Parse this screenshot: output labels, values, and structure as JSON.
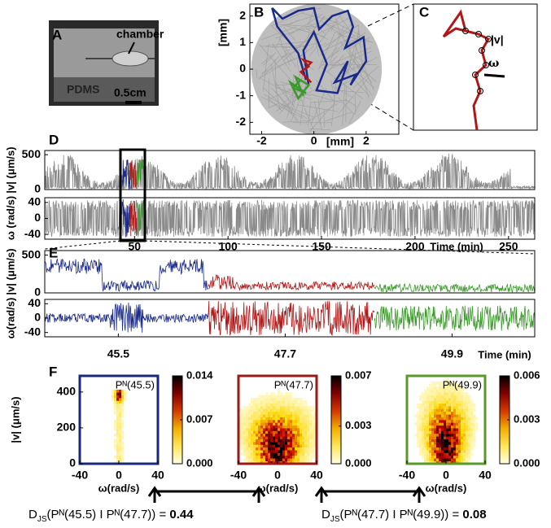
{
  "panel_a": {
    "letter": "A",
    "chamber": "chamber",
    "material": "PDMS",
    "scale": "0.5cm"
  },
  "panel_b": {
    "letter": "B",
    "xlabel": "[mm]",
    "ylabel": "[mm]",
    "xlim": [
      -2.45,
      3.25
    ],
    "xticks": [
      -2,
      0,
      2
    ],
    "ylim": [
      -2.45,
      2.45
    ],
    "yticks": [
      -2,
      -1,
      0,
      1,
      2
    ]
  },
  "panel_c": {
    "letter": "C",
    "speed_label": "|v|",
    "turn_label": "ω"
  },
  "panel_d": {
    "letter": "D",
    "xlim": [
      2,
      264
    ],
    "xticks": [
      50,
      100,
      150,
      200,
      250
    ],
    "xlabel": "Time (min)",
    "speed": {
      "ylabel": "|v| (μm/s)",
      "ylim": [
        0,
        560
      ],
      "yticks": [
        0,
        500
      ]
    },
    "turn": {
      "ylabel": "ω (rad/s)",
      "ylim": [
        -52,
        52
      ],
      "yticks": [
        -40,
        0,
        40
      ]
    }
  },
  "panel_e": {
    "letter": "E",
    "xlim": [
      44.53,
      50.99
    ],
    "xticks": [
      45.5,
      47.7,
      49.9
    ],
    "xlabel": "Time (min)",
    "speed": {
      "ylabel": "|v| (μm/s)",
      "ylim": [
        0,
        560
      ],
      "yticks": [
        0,
        500
      ]
    },
    "turn": {
      "ylabel": "ω(rad/s)",
      "ylim": [
        -52,
        52
      ],
      "yticks": [
        -40,
        0,
        40
      ]
    }
  },
  "panel_f": {
    "letter": "F",
    "ylabel": "|v| (μm/s)",
    "xlabel": "ω(rad/s)",
    "xlim": [
      -40,
      40
    ],
    "xticks": [
      -40,
      0,
      40
    ],
    "ylim": [
      0,
      490
    ],
    "yticks": [
      0,
      200,
      400
    ],
    "maps": [
      {
        "title": "Pᴺ(45.5)",
        "border": "#1a2a7a",
        "clim": [
          0,
          0.014
        ],
        "cticks": [
          {
            "value": 0,
            "label": "0.000"
          },
          0.007,
          0.014
        ]
      },
      {
        "title": "Pᴺ(47.7)",
        "border": "#9a1a1a",
        "clim": [
          0,
          0.007
        ],
        "cticks": [
          {
            "value": 0,
            "label": "0.000"
          },
          0.003,
          0.007
        ]
      },
      {
        "title": "Pᴺ(49.9)",
        "border": "#5a9a2a",
        "clim": [
          0,
          0.006
        ],
        "cticks": [
          {
            "value": 0,
            "label": "0.000"
          },
          0.003,
          0.006
        ]
      }
    ]
  },
  "divergences": [
    {
      "symbol": "D",
      "subscript": "JS",
      "argument": "(Pᴺ(45.5) I Pᴺ(47.7)) = ",
      "value": "0.44"
    },
    {
      "symbol": "D",
      "subscript": "JS",
      "argument": "(Pᴺ(47.7) I Pᴺ(49.9)) = ",
      "value": "0.08"
    }
  ]
}
